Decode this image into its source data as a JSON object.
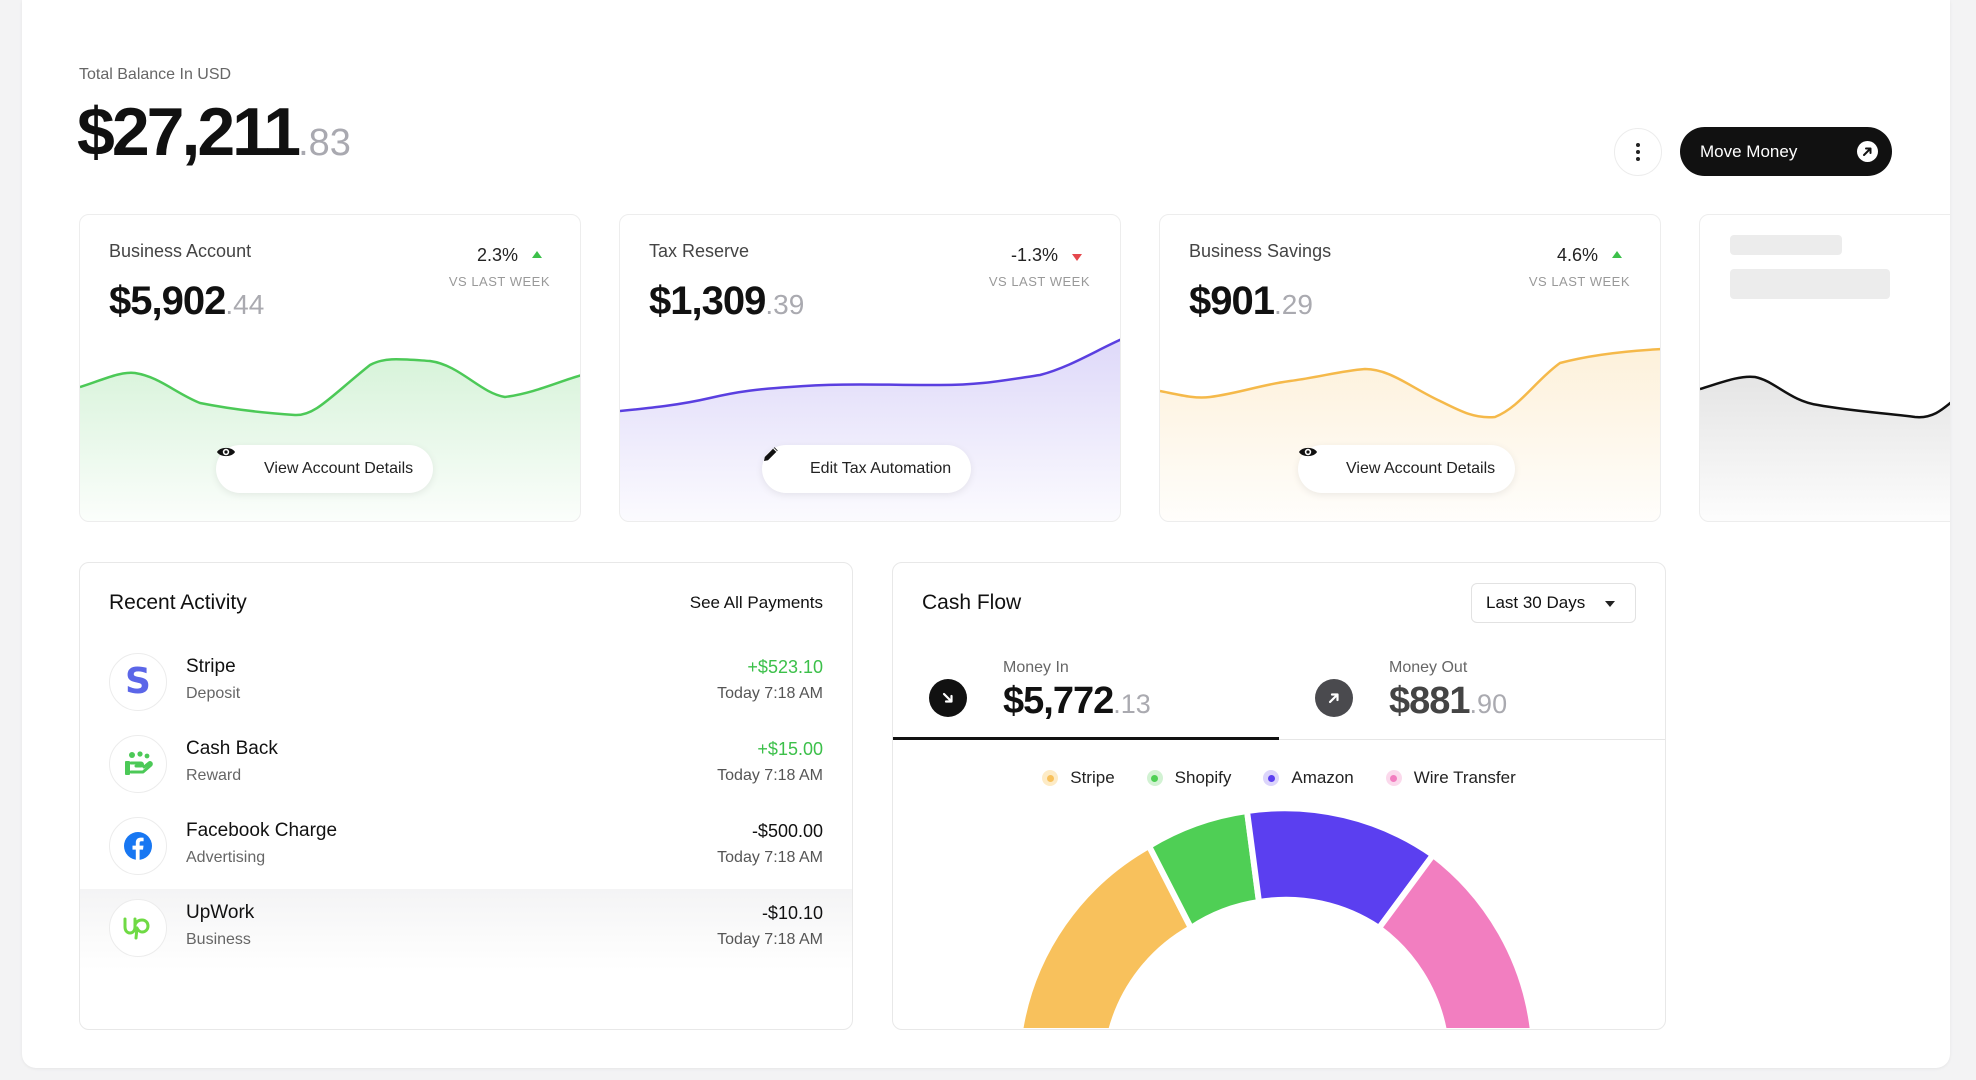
{
  "header": {
    "total_label": "Total Balance In USD",
    "total_whole": "$27,211",
    "total_cents": ".83",
    "move_money_label": "Move Money"
  },
  "accounts": [
    {
      "title": "Business Account",
      "whole": "$5,902",
      "cents": ".44",
      "change": "2.3%",
      "direction": "up",
      "vs": "VS LAST WEEK",
      "action": "View Account Details",
      "action_icon": "eye-icon",
      "color": "#4cc957"
    },
    {
      "title": "Tax Reserve",
      "whole": "$1,309",
      "cents": ".39",
      "change": "-1.3%",
      "direction": "down",
      "vs": "VS LAST WEEK",
      "action": "Edit Tax Automation",
      "action_icon": "pencil-icon",
      "color": "#5a3fe0"
    },
    {
      "title": "Business Savings",
      "whole": "$901",
      "cents": ".29",
      "change": "4.6%",
      "direction": "up",
      "vs": "VS LAST WEEK",
      "action": "View Account Details",
      "action_icon": "eye-icon",
      "color": "#f5b94a"
    }
  ],
  "activity": {
    "title": "Recent Activity",
    "see_all": "See All Payments",
    "items": [
      {
        "name": "Stripe",
        "sub": "Deposit",
        "amount": "+$523.10",
        "time": "Today 7:18 AM",
        "positive": true,
        "icon": "stripe-logo-icon"
      },
      {
        "name": "Cash Back",
        "sub": "Reward",
        "amount": "+$15.00",
        "time": "Today 7:18 AM",
        "positive": true,
        "icon": "cash-back-icon"
      },
      {
        "name": "Facebook Charge",
        "sub": "Advertising",
        "amount": "-$500.00",
        "time": "Today 7:18 AM",
        "positive": false,
        "icon": "facebook-logo-icon"
      },
      {
        "name": "UpWork",
        "sub": "Business",
        "amount": "-$10.10",
        "time": "Today 7:18 AM",
        "positive": false,
        "icon": "upwork-logo-icon"
      }
    ]
  },
  "cashflow": {
    "title": "Cash Flow",
    "range": "Last 30 Days",
    "money_in_label": "Money In",
    "money_in_whole": "$5,772",
    "money_in_cents": ".13",
    "money_out_label": "Money Out",
    "money_out_whole": "$881",
    "money_out_cents": ".90",
    "legend": [
      {
        "name": "Stripe",
        "color": "#f8c15c"
      },
      {
        "name": "Shopify",
        "color": "#4fcf55"
      },
      {
        "name": "Amazon",
        "color": "#5b3ff0"
      },
      {
        "name": "Wire Transfer",
        "color": "#f27ec0"
      }
    ]
  }
}
